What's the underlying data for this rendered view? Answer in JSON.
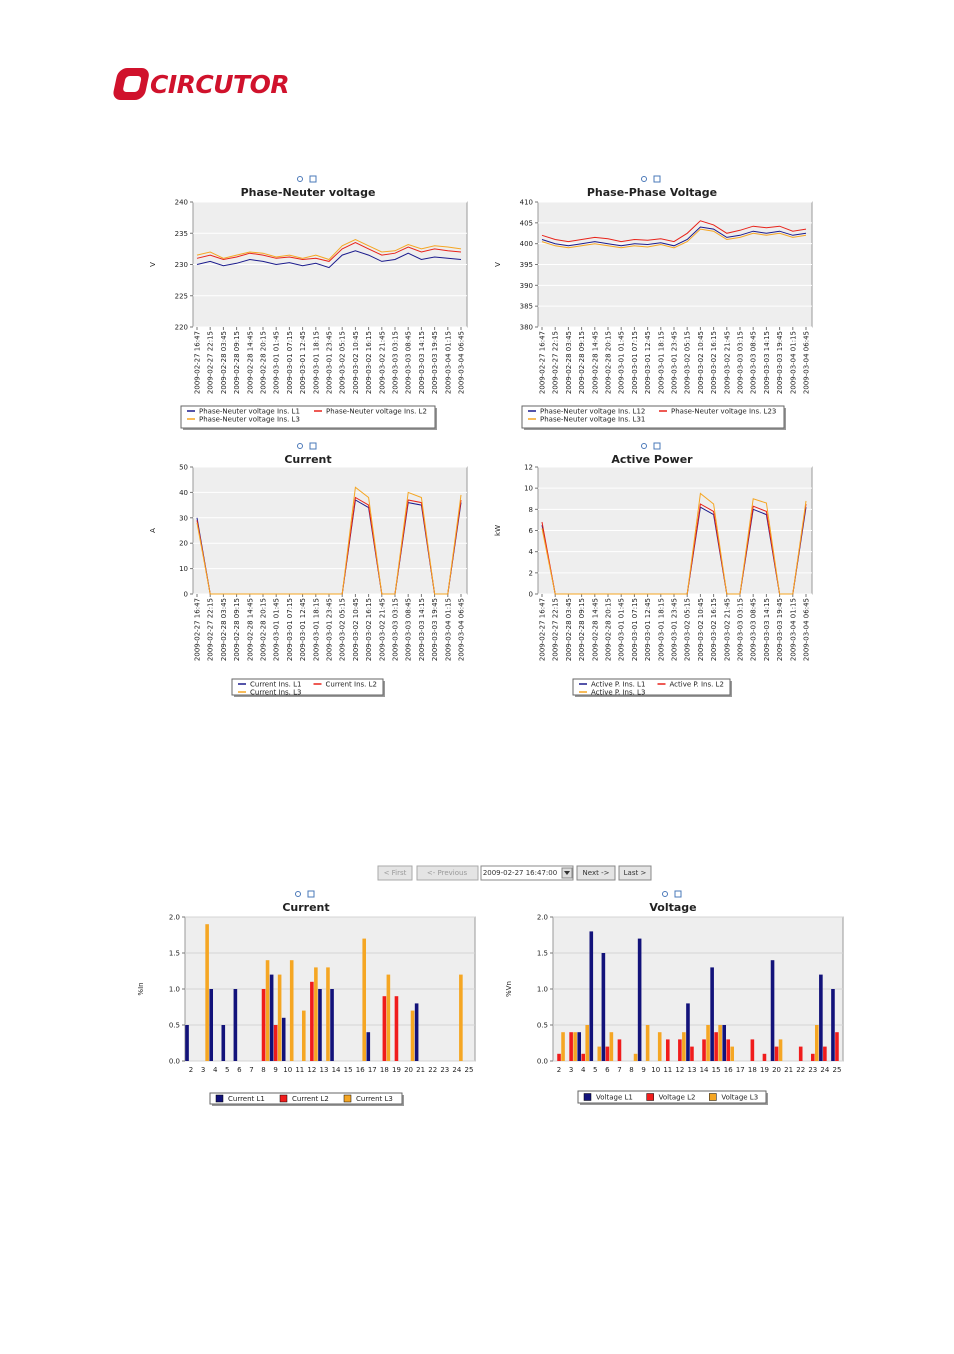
{
  "logo": {
    "text": "CIRCUTOR"
  },
  "navigation": {
    "first": "< First",
    "previous": "<- Previous",
    "date": "2009-02-27 16:47:00",
    "next": "Next ->",
    "last": "Last >"
  },
  "chart_data": [
    {
      "type": "line",
      "title": "Phase-Neuter voltage",
      "y_label": "V",
      "ylim": [
        220,
        240
      ],
      "yticks": [
        220,
        225,
        230,
        235,
        240
      ],
      "grid": true,
      "categories": [
        "2009-02-27 16:47",
        "2009-02-27 22:15",
        "2009-02-28 03:45",
        "2009-02-28 09:15",
        "2009-02-28 14:45",
        "2009-02-28 20:15",
        "2009-03-01 01:45",
        "2009-03-01 07:15",
        "2009-03-01 12:45",
        "2009-03-01 18:15",
        "2009-03-01 23:45",
        "2009-03-02 05:15",
        "2009-03-02 10:45",
        "2009-03-02 16:15",
        "2009-03-02 21:45",
        "2009-03-03 03:15",
        "2009-03-03 08:45",
        "2009-03-03 14:15",
        "2009-03-03 19:45",
        "2009-03-04 01:15",
        "2009-03-04 06:45"
      ],
      "series": [
        {
          "name": "Phase-Neuter voltage Ins. L1",
          "color": "#1a1a8c",
          "values": [
            230,
            230.5,
            229.8,
            230.2,
            230.8,
            230.5,
            230,
            230.3,
            229.8,
            230.2,
            229.5,
            231.5,
            232.2,
            231.5,
            230.5,
            230.8,
            231.8,
            230.8,
            231.2,
            231,
            230.8
          ]
        },
        {
          "name": "Phase-Neuter voltage Ins. L2",
          "color": "#e8231a",
          "values": [
            231,
            231.5,
            230.8,
            231.2,
            231.8,
            231.5,
            231,
            231.2,
            230.8,
            231,
            230.5,
            232.5,
            233.5,
            232.5,
            231.5,
            231.8,
            232.8,
            232,
            232.5,
            232.2,
            232
          ]
        },
        {
          "name": "Phase-Neuter voltage Ins. L3",
          "color": "#f5a623",
          "values": [
            231.5,
            232,
            231,
            231.5,
            232,
            231.8,
            231.2,
            231.5,
            231,
            231.5,
            230.8,
            233,
            234,
            233,
            232,
            232.2,
            233.2,
            232.5,
            233,
            232.8,
            232.5
          ]
        }
      ]
    },
    {
      "type": "line",
      "title": "Phase-Phase Voltage",
      "y_label": "V",
      "ylim": [
        380,
        410
      ],
      "yticks": [
        380,
        385,
        390,
        395,
        400,
        405,
        410
      ],
      "grid": true,
      "categories": [
        "2009-02-27 16:47",
        "2009-02-27 22:15",
        "2009-02-28 03:45",
        "2009-02-28 09:15",
        "2009-02-28 14:45",
        "2009-02-28 20:15",
        "2009-03-01 01:45",
        "2009-03-01 07:15",
        "2009-03-01 12:45",
        "2009-03-01 18:15",
        "2009-03-01 23:45",
        "2009-03-02 05:15",
        "2009-03-02 10:45",
        "2009-03-02 16:15",
        "2009-03-02 21:45",
        "2009-03-03 03:15",
        "2009-03-03 08:45",
        "2009-03-03 14:15",
        "2009-03-03 19:45",
        "2009-03-04 01:15",
        "2009-03-04 06:45"
      ],
      "series": [
        {
          "name": "Phase-Neuter voltage Ins. L12",
          "color": "#1a1a8c",
          "values": [
            401,
            400,
            399.5,
            400,
            400.5,
            400,
            399.5,
            400,
            399.8,
            400.2,
            399.5,
            401,
            404,
            403.5,
            401.5,
            402,
            403,
            402.5,
            403,
            402,
            402.5
          ]
        },
        {
          "name": "Phase-Neuter voltage Ins. L23",
          "color": "#e8231a",
          "values": [
            402,
            401,
            400.5,
            401,
            401.5,
            401.2,
            400.5,
            401,
            400.8,
            401.2,
            400.5,
            402.5,
            405.5,
            404.5,
            402.5,
            403.2,
            404.2,
            403.8,
            404.2,
            403,
            403.5
          ]
        },
        {
          "name": "Phase-Neuter voltage Ins. L31",
          "color": "#f5a623",
          "values": [
            400.5,
            399.5,
            399,
            399.5,
            400,
            399.5,
            399,
            399.5,
            399.2,
            399.8,
            399,
            400.5,
            403.5,
            403,
            401,
            401.5,
            402.5,
            402,
            402.5,
            401.5,
            402
          ]
        }
      ]
    },
    {
      "type": "line",
      "title": "Current",
      "y_label": "A",
      "ylim": [
        0,
        50
      ],
      "yticks": [
        0,
        10,
        20,
        30,
        40,
        50
      ],
      "grid": true,
      "categories": [
        "2009-02-27 16:47",
        "2009-02-27 22:15",
        "2009-02-28 03:45",
        "2009-02-28 09:15",
        "2009-02-28 14:45",
        "2009-02-28 20:15",
        "2009-03-01 01:45",
        "2009-03-01 07:15",
        "2009-03-01 12:45",
        "2009-03-01 18:15",
        "2009-03-01 23:45",
        "2009-03-02 05:15",
        "2009-03-02 10:45",
        "2009-03-02 16:15",
        "2009-03-02 21:45",
        "2009-03-03 03:15",
        "2009-03-03 08:45",
        "2009-03-03 14:15",
        "2009-03-03 19:45",
        "2009-03-04 01:15",
        "2009-03-04 06:45"
      ],
      "series": [
        {
          "name": "Current Ins. L1",
          "color": "#1a1a8c",
          "values": [
            30,
            0,
            0,
            0,
            0,
            0,
            0,
            0,
            0,
            0,
            0,
            0,
            37,
            34,
            0,
            0,
            36,
            35,
            0,
            0,
            36
          ]
        },
        {
          "name": "Current Ins. L2",
          "color": "#e8231a",
          "values": [
            29,
            0,
            0,
            0,
            0,
            0,
            0,
            0,
            0,
            0,
            0,
            0,
            38,
            35,
            0,
            0,
            37,
            36,
            0,
            0,
            37
          ]
        },
        {
          "name": "Current Ins. L3",
          "color": "#f5a623",
          "values": [
            28,
            0,
            0,
            0,
            0,
            0,
            0,
            0,
            0,
            0,
            0,
            0,
            42,
            38,
            0,
            0,
            40,
            38,
            0,
            0,
            39
          ]
        }
      ]
    },
    {
      "type": "line",
      "title": "Active Power",
      "y_label": "kW",
      "ylim": [
        0,
        12
      ],
      "yticks": [
        0,
        2,
        4,
        6,
        8,
        10,
        12
      ],
      "grid": true,
      "categories": [
        "2009-02-27 16:47",
        "2009-02-27 22:15",
        "2009-02-28 03:45",
        "2009-02-28 09:15",
        "2009-02-28 14:45",
        "2009-02-28 20:15",
        "2009-03-01 01:45",
        "2009-03-01 07:15",
        "2009-03-01 12:45",
        "2009-03-01 18:15",
        "2009-03-01 23:45",
        "2009-03-02 05:15",
        "2009-03-02 10:45",
        "2009-03-02 16:15",
        "2009-03-02 21:45",
        "2009-03-03 03:15",
        "2009-03-03 08:45",
        "2009-03-03 14:15",
        "2009-03-03 19:45",
        "2009-03-04 01:15",
        "2009-03-04 06:45"
      ],
      "series": [
        {
          "name": "Active P. Ins. L1",
          "color": "#1a1a8c",
          "values": [
            6.5,
            0,
            0,
            0,
            0,
            0,
            0,
            0,
            0,
            0,
            0,
            0,
            8.2,
            7.5,
            0,
            0,
            8,
            7.5,
            0,
            0,
            8.2
          ]
        },
        {
          "name": "Active P. Ins. L2",
          "color": "#e8231a",
          "values": [
            6.8,
            0,
            0,
            0,
            0,
            0,
            0,
            0,
            0,
            0,
            0,
            0,
            8.5,
            7.8,
            0,
            0,
            8.3,
            7.8,
            0,
            0,
            8.5
          ]
        },
        {
          "name": "Active P. Ins. L3",
          "color": "#f5a623",
          "values": [
            6.2,
            0,
            0,
            0,
            0,
            0,
            0,
            0,
            0,
            0,
            0,
            0,
            9.5,
            8.5,
            0,
            0,
            9,
            8.6,
            0,
            0,
            8.8
          ]
        }
      ]
    },
    {
      "type": "bar",
      "title": "Current",
      "y_label": "%In",
      "ylim": [
        0,
        2
      ],
      "grid": true,
      "yticks": [
        {
          "value": 0,
          "label": "0.0"
        },
        {
          "value": 0.5,
          "label": "0.5"
        },
        {
          "value": 1,
          "label": "1.0"
        },
        {
          "value": 1.5,
          "label": "1.5"
        },
        {
          "value": 2,
          "label": "2.0"
        }
      ],
      "categories": [
        "2",
        "3",
        "4",
        "5",
        "6",
        "7",
        "8",
        "9",
        "10",
        "11",
        "12",
        "13",
        "14",
        "15",
        "16",
        "17",
        "18",
        "19",
        "20",
        "21",
        "22",
        "23",
        "24",
        "25"
      ],
      "series": [
        {
          "name": "Current L1",
          "color": "#12127a",
          "values": [
            0.5,
            0,
            1.0,
            0.5,
            1.0,
            0,
            0,
            1.2,
            0.6,
            0,
            0,
            1.0,
            1.0,
            0,
            0,
            0.4,
            0,
            0,
            0,
            0.8,
            0,
            0,
            0,
            0
          ]
        },
        {
          "name": "Current L2",
          "color": "#f01c1c",
          "values": [
            0,
            0,
            0,
            0,
            0,
            0,
            1.0,
            0.5,
            0,
            0,
            1.1,
            0,
            0,
            0,
            0,
            0,
            0.9,
            0.9,
            0,
            0,
            0,
            0,
            0,
            0
          ]
        },
        {
          "name": "Current L3",
          "color": "#f5a623",
          "values": [
            0,
            1.9,
            0,
            0,
            0,
            0,
            1.4,
            1.2,
            1.4,
            0.7,
            1.3,
            1.3,
            0,
            0,
            1.7,
            0,
            1.2,
            0,
            0.7,
            0,
            0,
            0,
            1.2,
            0
          ]
        }
      ]
    },
    {
      "type": "bar",
      "title": "Voltage",
      "y_label": "%Vn",
      "ylim": [
        0,
        2
      ],
      "grid": true,
      "yticks": [
        {
          "value": 0,
          "label": "0.0"
        },
        {
          "value": 0.5,
          "label": "0.5"
        },
        {
          "value": 1,
          "label": "1.0"
        },
        {
          "value": 1.5,
          "label": "1.5"
        },
        {
          "value": 2,
          "label": "2.0"
        }
      ],
      "categories": [
        "2",
        "3",
        "4",
        "5",
        "6",
        "7",
        "8",
        "9",
        "10",
        "11",
        "12",
        "13",
        "14",
        "15",
        "16",
        "17",
        "18",
        "19",
        "20",
        "21",
        "22",
        "23",
        "24",
        "25"
      ],
      "series": [
        {
          "name": "Voltage L1",
          "color": "#12127a",
          "values": [
            0,
            0,
            0.4,
            1.8,
            1.5,
            0,
            0,
            1.7,
            0,
            0,
            0,
            0.8,
            0,
            1.3,
            0.5,
            0,
            0,
            0,
            1.4,
            0,
            0,
            0,
            1.2,
            1.0
          ]
        },
        {
          "name": "Voltage L2",
          "color": "#f01c1c",
          "values": [
            0.1,
            0.4,
            0.1,
            0,
            0.2,
            0.3,
            0,
            0,
            0,
            0.3,
            0.3,
            0.2,
            0.3,
            0.4,
            0.3,
            0,
            0.3,
            0.1,
            0.2,
            0,
            0.2,
            0.1,
            0.2,
            0.4
          ]
        },
        {
          "name": "Voltage L3",
          "color": "#f5a623",
          "values": [
            0.4,
            0.4,
            0.5,
            0.2,
            0.4,
            0,
            0.1,
            0.5,
            0.4,
            0,
            0.4,
            0,
            0.5,
            0.5,
            0.2,
            0,
            0,
            0,
            0.3,
            0,
            0,
            0.5,
            0,
            0
          ]
        }
      ]
    }
  ]
}
